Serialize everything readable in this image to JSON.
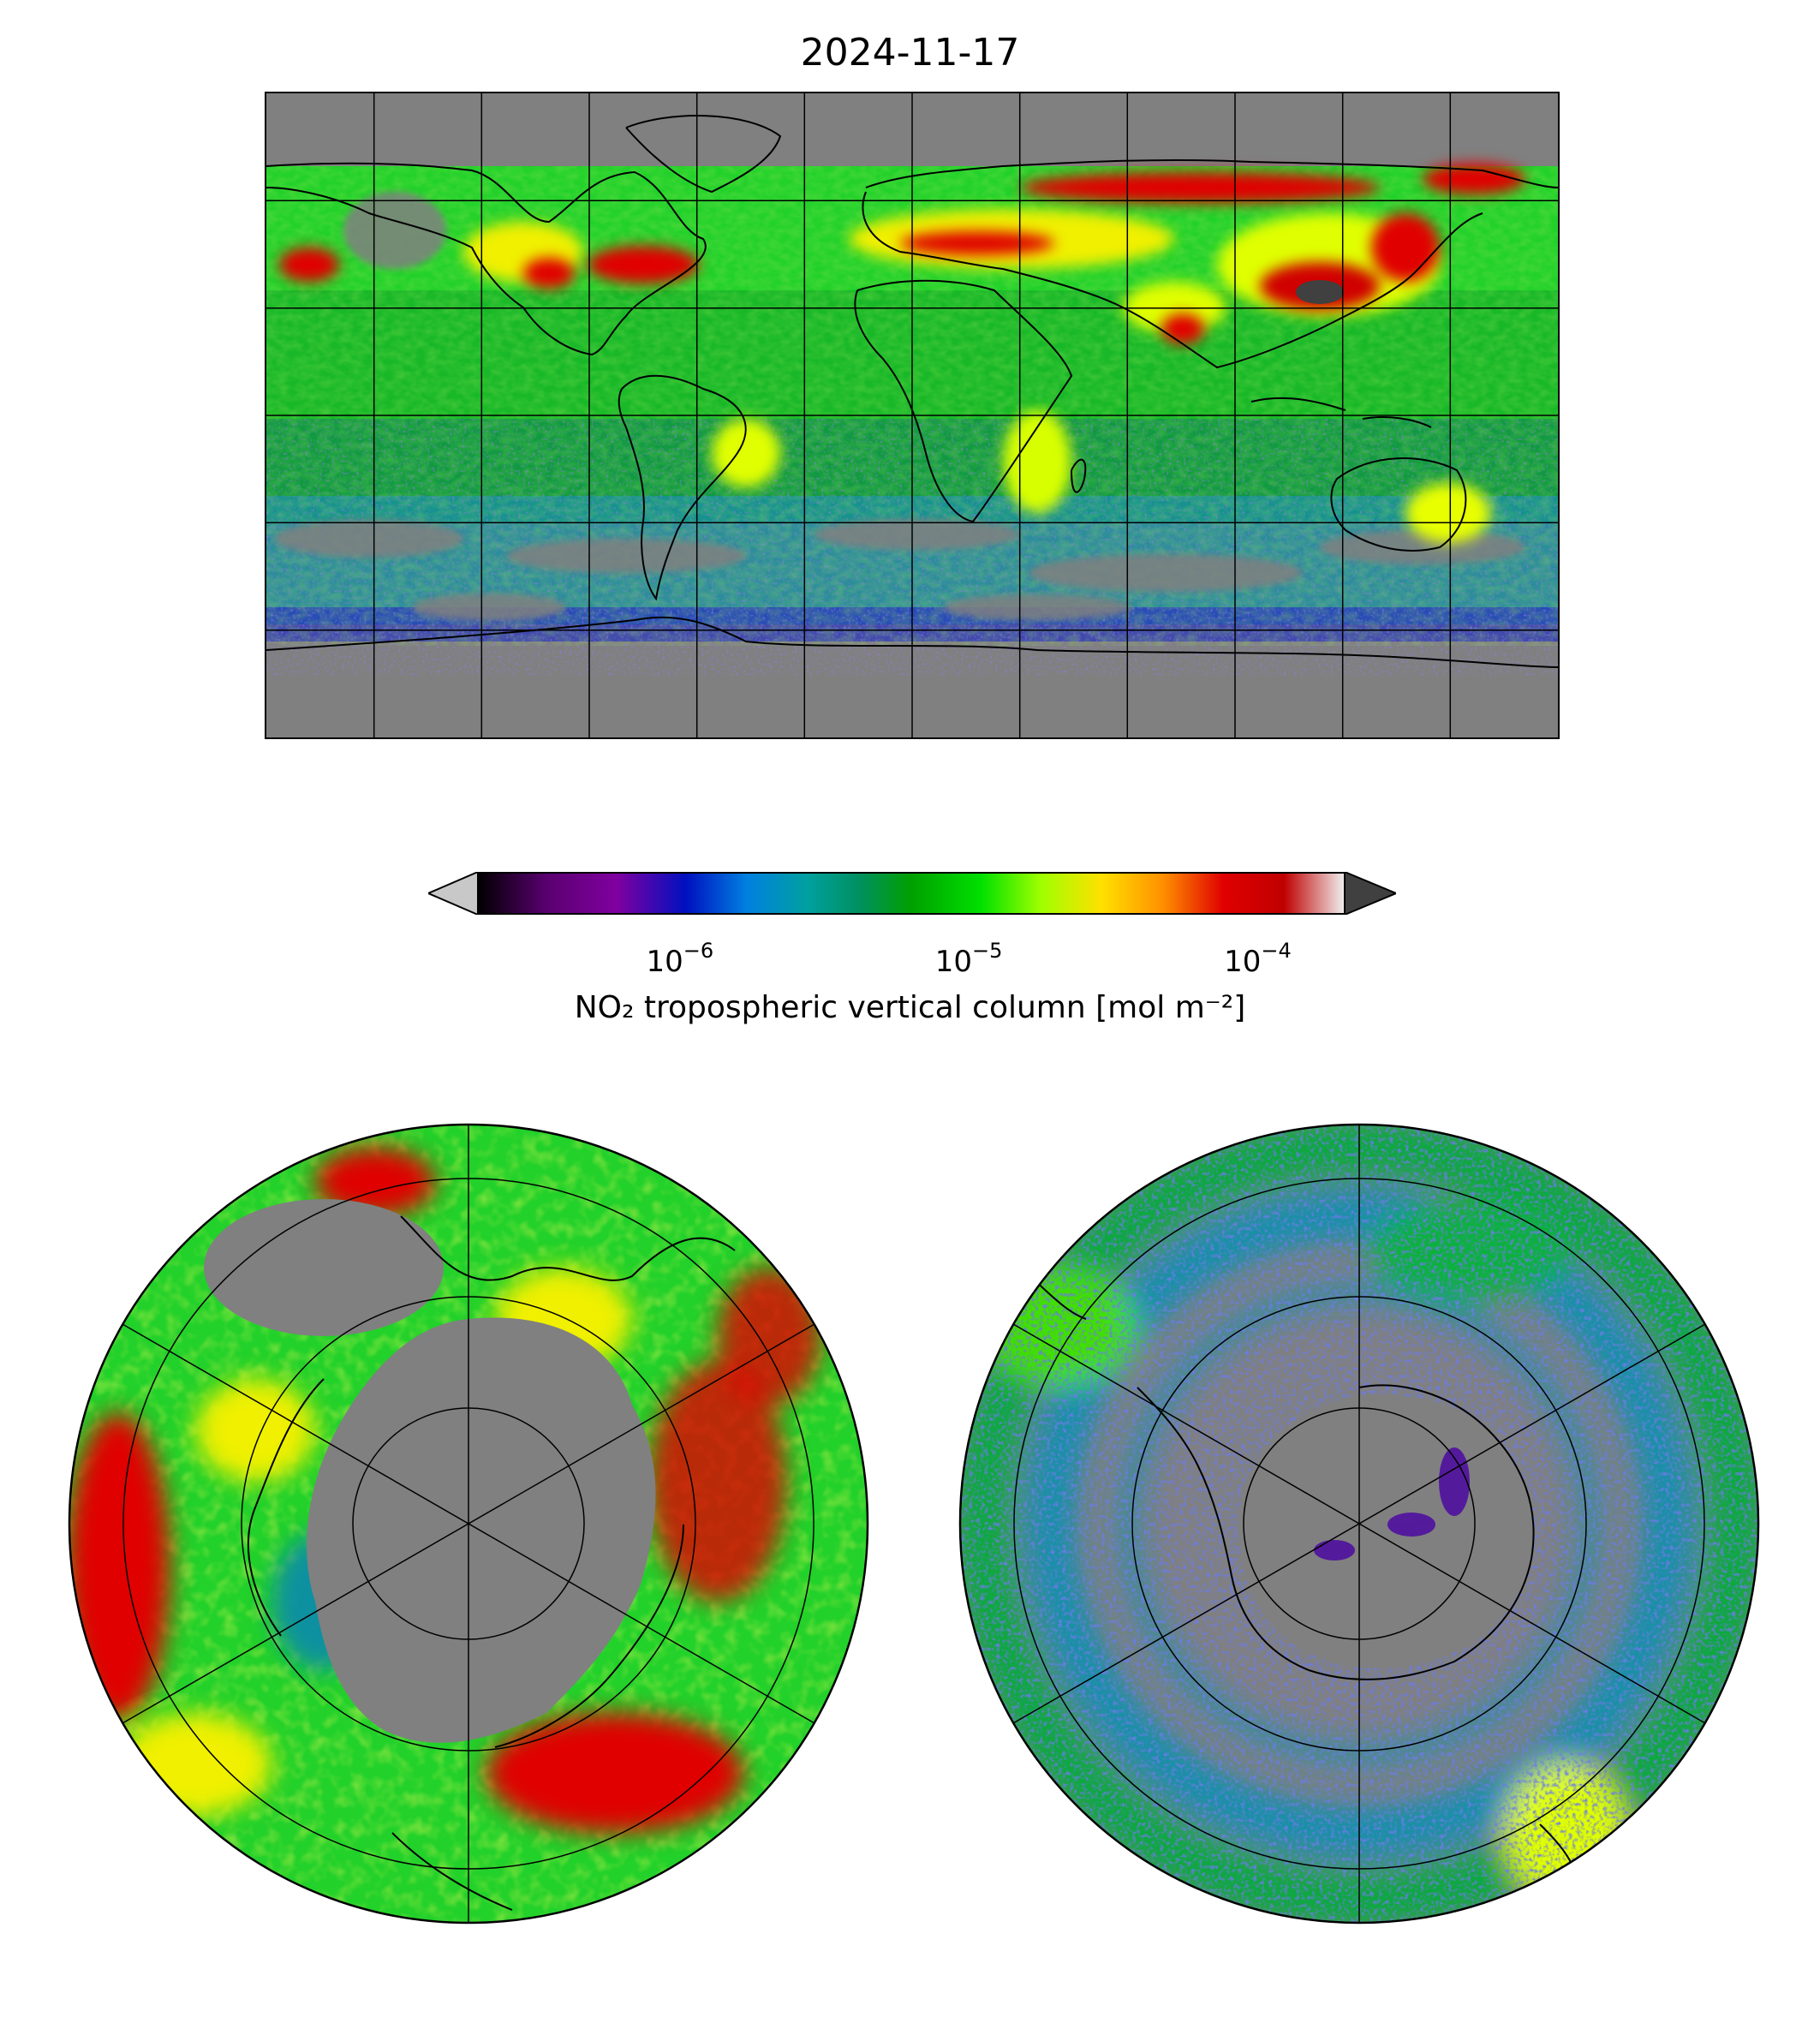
{
  "title": "2024-11-17",
  "colorbar": {
    "label": "NO₂ tropospheric vertical column [mol m⁻²]",
    "scale": "log",
    "range": [
      2e-07,
      0.0002
    ],
    "extend": "both",
    "ticks": [
      {
        "base": "10",
        "exp": "−6",
        "value": 1e-06
      },
      {
        "base": "10",
        "exp": "−5",
        "value": 1e-05
      },
      {
        "base": "10",
        "exp": "−4",
        "value": 0.0001
      }
    ],
    "colors": {
      "under": "#c8c8c8",
      "over": "#404040",
      "missing": "#808080",
      "stops": [
        "#000000",
        "#8000a0",
        "#0010c0",
        "#0090d0",
        "#009070",
        "#00a000",
        "#00e000",
        "#a0ff00",
        "#ffe000",
        "#ff8000",
        "#e00000",
        "#c00000",
        "#f0f0f0"
      ]
    }
  },
  "maps": {
    "global": {
      "projection": "equirectangular",
      "gridlines": true,
      "coastlines": true
    },
    "north": {
      "projection": "north-polar-stereographic",
      "gridlines": true,
      "coastlines": true
    },
    "south": {
      "projection": "south-polar-stereographic",
      "gridlines": true,
      "coastlines": true
    }
  }
}
